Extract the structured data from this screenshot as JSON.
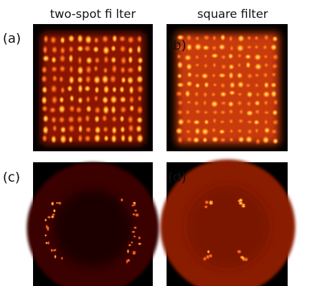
{
  "figure": {
    "column_titles": [
      "two-spot fi lter",
      "square  filter"
    ],
    "panel_labels": [
      "(a)",
      "(b)",
      "(c)",
      "(d)"
    ]
  }
}
